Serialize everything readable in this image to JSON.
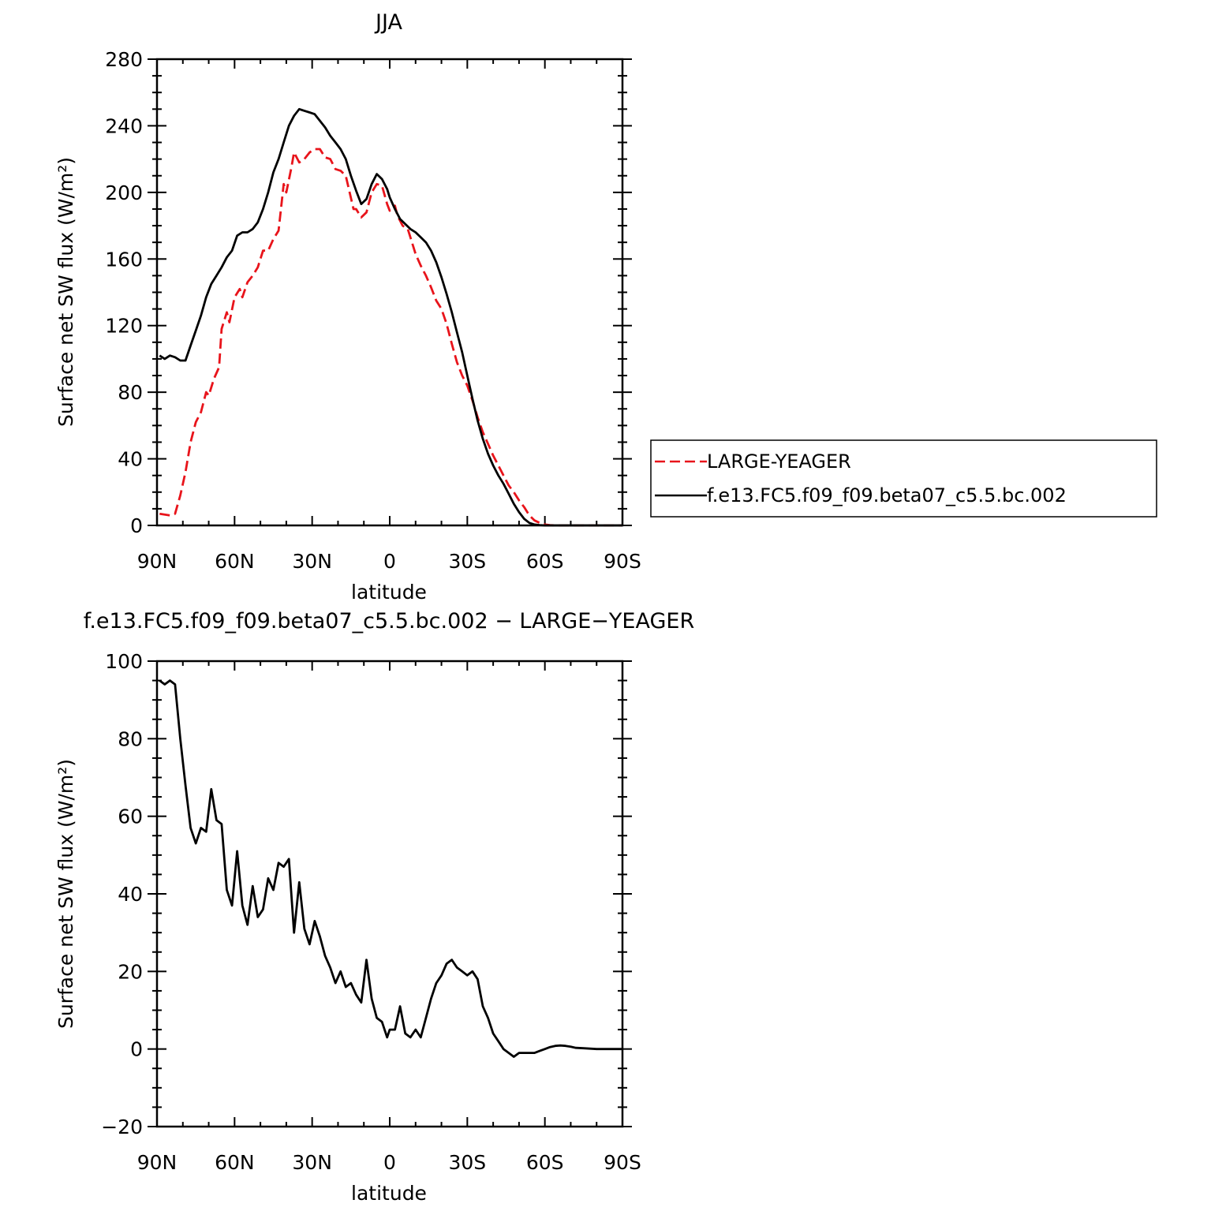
{
  "colors": {
    "obs": "#e8141b",
    "model": "#000000"
  },
  "chart_data": [
    {
      "type": "line",
      "title": "JJA",
      "xlabel": "latitude",
      "ylabel": "Surface net SW flux (W/m²)",
      "xlim": [
        90,
        -90
      ],
      "ylim": [
        0,
        280
      ],
      "xticks": [
        90,
        60,
        30,
        0,
        -30,
        -60,
        -90
      ],
      "xtick_labels": [
        "90N",
        "60N",
        "30N",
        "0",
        "30S",
        "60S",
        "90S"
      ],
      "yticks": [
        0,
        40,
        80,
        120,
        160,
        200,
        240,
        280
      ],
      "ytick_labels": [
        "0",
        "40",
        "80",
        "120",
        "160",
        "200",
        "240",
        "280"
      ],
      "legend": {
        "placement": "right"
      },
      "series": [
        {
          "name": "LARGE-YEAGER",
          "style": "dashed",
          "color": "#e8141b",
          "x": [
            89,
            85,
            83,
            81,
            79,
            77,
            75,
            73,
            71,
            70,
            68,
            66,
            65,
            63,
            62,
            60,
            58,
            57,
            55,
            53,
            51,
            49,
            47,
            45,
            43,
            41,
            40,
            38,
            37,
            35,
            33,
            31,
            29,
            27,
            25,
            23,
            21,
            19,
            17,
            14,
            13,
            11,
            9,
            7,
            5,
            3,
            1,
            0,
            -2,
            -3,
            -5,
            -7,
            -8,
            -10,
            -12,
            -14,
            -16,
            -18,
            -20,
            -22,
            -24,
            -26,
            -28,
            -30,
            -32,
            -34,
            -36,
            -38,
            -40,
            -42,
            -44,
            -46,
            -48,
            -50,
            -52,
            -54,
            -56,
            -58,
            -60,
            -62,
            -64,
            -66,
            -68,
            -70,
            -72,
            -75,
            -80,
            -85,
            -90
          ],
          "values": [
            7,
            6,
            7,
            18,
            32,
            50,
            62,
            68,
            80,
            78,
            88,
            95,
            118,
            128,
            122,
            137,
            142,
            137,
            146,
            150,
            155,
            165,
            165,
            172,
            177,
            205,
            200,
            215,
            224,
            218,
            220,
            224,
            226,
            226,
            221,
            220,
            214,
            213,
            210,
            190,
            190,
            185,
            188,
            200,
            205,
            204,
            193,
            189,
            192,
            186,
            180,
            178,
            173,
            163,
            156,
            150,
            143,
            135,
            130,
            121,
            109,
            98,
            90,
            84,
            75,
            65,
            56,
            49,
            42,
            36,
            30,
            24,
            20,
            15,
            11,
            6,
            3,
            1.5,
            0.5,
            0.2,
            0,
            0,
            0,
            0,
            0,
            0,
            0,
            0,
            0
          ]
        },
        {
          "name": "f.e13.FC5.f09_f09.beta07_c5.5.bc.002",
          "style": "solid",
          "color": "#000000",
          "x": [
            89,
            87,
            85,
            83,
            81,
            79,
            77,
            75,
            73,
            71,
            69,
            67,
            65,
            63,
            61,
            59,
            57,
            55,
            53,
            51,
            49,
            47,
            45,
            43,
            41,
            39,
            37,
            35,
            33,
            31,
            29,
            27,
            25,
            23,
            21,
            19,
            17,
            15,
            13,
            11,
            9,
            7,
            5,
            3,
            1,
            0,
            -2,
            -4,
            -6,
            -8,
            -10,
            -12,
            -14,
            -16,
            -18,
            -20,
            -22,
            -24,
            -26,
            -28,
            -30,
            -32,
            -34,
            -36,
            -38,
            -40,
            -42,
            -44,
            -46,
            -48,
            -50,
            -52,
            -54,
            -56,
            -58,
            -60,
            -62,
            -64,
            -66,
            -68,
            -70,
            -72,
            -75,
            -80,
            -85,
            -90
          ],
          "values": [
            102,
            100,
            102,
            101,
            99,
            99,
            108,
            117,
            126,
            137,
            145,
            150,
            155,
            161,
            165,
            174,
            176,
            176,
            178,
            182,
            190,
            200,
            212,
            220,
            230,
            240,
            246,
            250,
            249,
            248,
            247,
            243,
            239,
            234,
            230,
            226,
            220,
            210,
            201,
            193,
            196,
            205,
            211,
            208,
            202,
            197,
            190,
            184,
            181,
            178,
            176,
            173,
            170,
            165,
            158,
            149,
            139,
            128,
            116,
            104,
            90,
            76,
            63,
            52,
            43,
            36,
            30,
            25,
            19,
            13,
            8,
            4,
            1.5,
            0.5,
            0.2,
            0,
            0,
            0,
            0,
            0,
            0,
            0,
            0,
            0,
            0,
            0
          ]
        }
      ]
    },
    {
      "type": "line",
      "title": "f.e13.FC5.f09_f09.beta07_c5.5.bc.002 − LARGE−YEAGER",
      "xlabel": "latitude",
      "ylabel": "Surface net SW flux (W/m²)",
      "xlim": [
        90,
        -90
      ],
      "ylim": [
        -20,
        100
      ],
      "xticks": [
        90,
        60,
        30,
        0,
        -30,
        -60,
        -90
      ],
      "xtick_labels": [
        "90N",
        "60N",
        "30N",
        "0",
        "30S",
        "60S",
        "90S"
      ],
      "yticks": [
        -20,
        0,
        20,
        40,
        60,
        80,
        100
      ],
      "ytick_labels": [
        "−20",
        "0",
        "20",
        "40",
        "60",
        "80",
        "100"
      ],
      "series": [
        {
          "style": "solid",
          "color": "#000000",
          "x": [
            89,
            87,
            85,
            83,
            81,
            79,
            77,
            75,
            73,
            71,
            69,
            67,
            65,
            63,
            61,
            59,
            57,
            55,
            53,
            51,
            49,
            47,
            45,
            43,
            41,
            39,
            37,
            35,
            33,
            31,
            29,
            27,
            25,
            23,
            21,
            19,
            17,
            15,
            13,
            11,
            9,
            7,
            5,
            3,
            1,
            0,
            -2,
            -4,
            -6,
            -8,
            -10,
            -12,
            -14,
            -16,
            -18,
            -20,
            -22,
            -24,
            -26,
            -28,
            -30,
            -32,
            -34,
            -36,
            -38,
            -40,
            -42,
            -44,
            -46,
            -48,
            -50,
            -52,
            -54,
            -56,
            -58,
            -60,
            -62,
            -64,
            -66,
            -68,
            -70,
            -72,
            -75,
            -80,
            -85,
            -90
          ],
          "values": [
            95,
            94,
            95,
            94,
            80,
            68,
            57,
            53,
            57,
            56,
            67,
            59,
            58,
            41,
            37,
            51,
            37,
            32,
            42,
            34,
            36,
            44,
            41,
            48,
            47,
            49,
            30,
            43,
            31,
            27,
            33,
            29,
            24,
            21,
            17,
            20,
            16,
            17,
            14,
            12,
            23,
            13,
            8,
            7,
            3,
            5,
            5,
            11,
            4,
            3,
            5,
            3,
            8,
            13,
            17,
            19,
            22,
            23,
            21,
            20,
            19,
            20,
            18,
            11,
            8,
            4,
            2,
            0,
            -1,
            -2,
            -1,
            -1,
            -1,
            -1,
            -0.5,
            0,
            0.5,
            0.8,
            0.9,
            0.8,
            0.6,
            0.3,
            0.2,
            0,
            0,
            0
          ]
        }
      ]
    }
  ]
}
